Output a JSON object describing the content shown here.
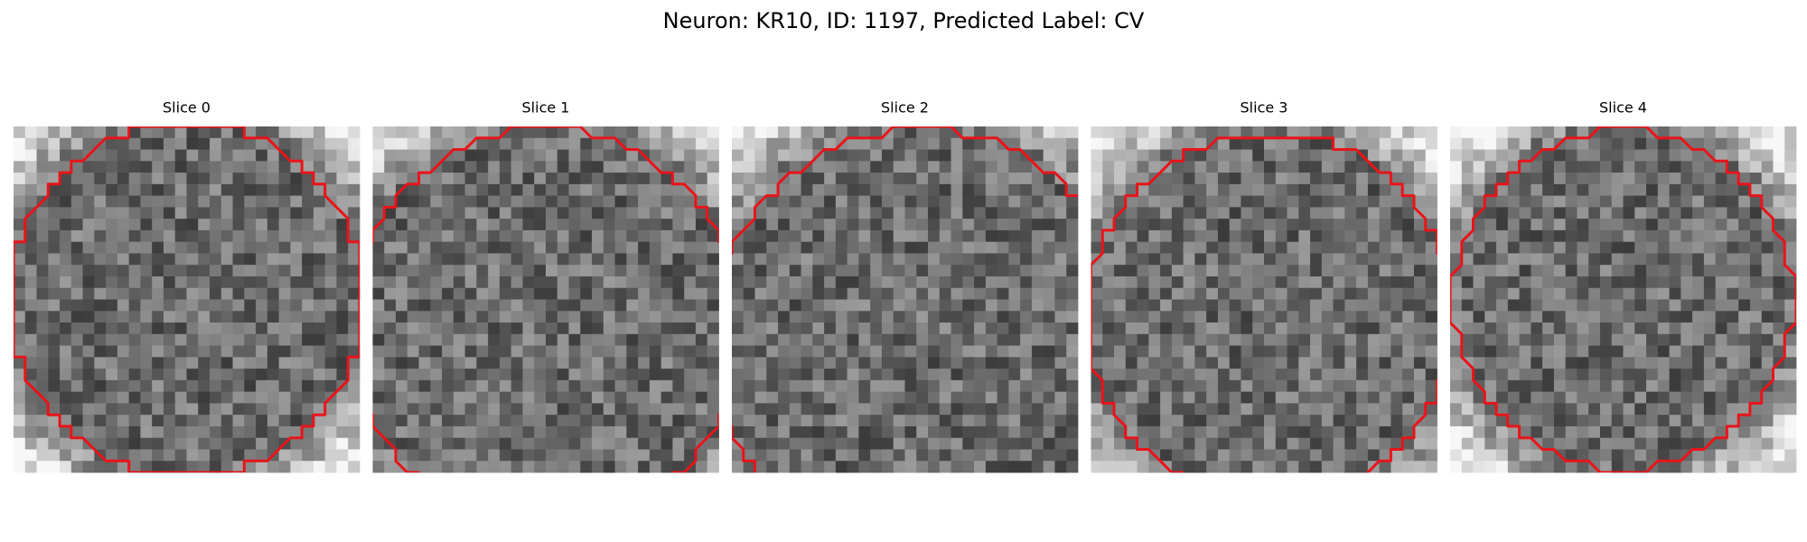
{
  "header": {
    "title": "Neuron: KR10, ID: 1197, Predicted Label: CV"
  },
  "panels": [
    {
      "title": "Slice 0"
    },
    {
      "title": "Slice 1"
    },
    {
      "title": "Slice 2"
    },
    {
      "title": "Slice 3"
    },
    {
      "title": "Slice 4"
    }
  ]
}
